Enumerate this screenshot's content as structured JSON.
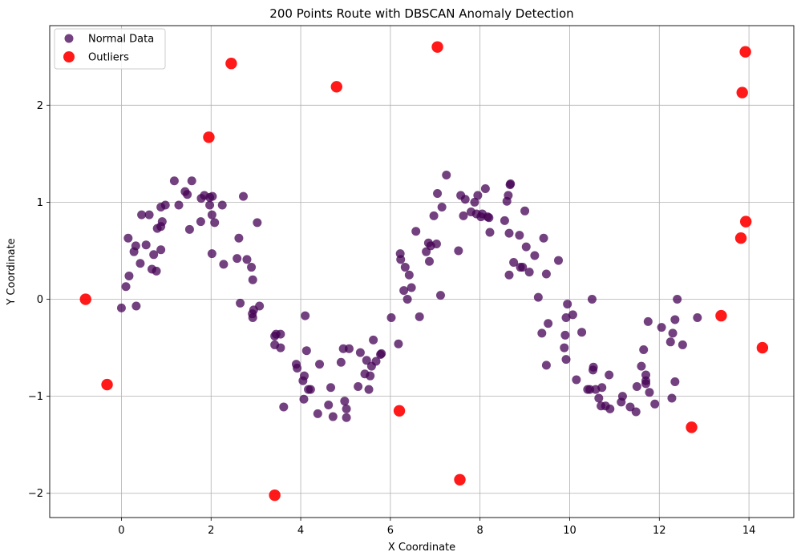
{
  "chart_data": {
    "type": "scatter",
    "title": "200 Points Route with DBSCAN Anomaly Detection",
    "xlabel": "X Coordinate",
    "ylabel": "Y Coordinate",
    "xlim": [
      -1.6,
      15.0
    ],
    "ylim": [
      -2.25,
      2.82
    ],
    "xticks": [
      0,
      2,
      4,
      6,
      8,
      10,
      12,
      14
    ],
    "yticks": [
      -2,
      -1,
      0,
      1,
      2
    ],
    "ytick_labels": [
      "−2",
      "−1",
      "0",
      "1",
      "2"
    ],
    "grid": true,
    "legend_position": "top-left",
    "series": [
      {
        "name": "Normal Data",
        "color": "#440154",
        "alpha": 0.75,
        "marker": "circle",
        "points": [
          [
            0.0,
            -0.09
          ],
          [
            0.1,
            0.13
          ],
          [
            0.17,
            0.24
          ],
          [
            0.15,
            0.63
          ],
          [
            0.28,
            0.49
          ],
          [
            0.32,
            0.55
          ],
          [
            0.33,
            -0.07
          ],
          [
            0.42,
            0.37
          ],
          [
            0.45,
            0.87
          ],
          [
            0.55,
            0.56
          ],
          [
            0.62,
            0.87
          ],
          [
            0.68,
            0.31
          ],
          [
            0.72,
            0.46
          ],
          [
            0.78,
            0.29
          ],
          [
            0.8,
            0.73
          ],
          [
            0.88,
            0.75
          ],
          [
            0.88,
            0.95
          ],
          [
            0.88,
            0.51
          ],
          [
            0.91,
            0.8
          ],
          [
            0.98,
            0.97
          ],
          [
            1.18,
            1.22
          ],
          [
            1.28,
            0.97
          ],
          [
            1.42,
            1.11
          ],
          [
            1.47,
            1.08
          ],
          [
            1.52,
            0.72
          ],
          [
            1.57,
            1.22
          ],
          [
            1.77,
            0.8
          ],
          [
            1.78,
            1.04
          ],
          [
            1.85,
            1.07
          ],
          [
            1.97,
            0.97
          ],
          [
            1.97,
            1.05
          ],
          [
            2.02,
            0.87
          ],
          [
            2.02,
            0.47
          ],
          [
            2.08,
            0.79
          ],
          [
            2.03,
            1.06
          ],
          [
            2.25,
            0.97
          ],
          [
            2.28,
            0.36
          ],
          [
            2.58,
            0.42
          ],
          [
            2.62,
            0.63
          ],
          [
            2.65,
            -0.04
          ],
          [
            2.72,
            1.06
          ],
          [
            2.8,
            0.41
          ],
          [
            2.9,
            0.33
          ],
          [
            2.92,
            -0.15
          ],
          [
            2.93,
            -0.19
          ],
          [
            2.93,
            0.2
          ],
          [
            2.95,
            -0.11
          ],
          [
            3.08,
            -0.07
          ],
          [
            3.03,
            0.79
          ],
          [
            3.42,
            -0.38
          ],
          [
            3.45,
            -0.36
          ],
          [
            3.55,
            -0.36
          ],
          [
            3.55,
            -0.5
          ],
          [
            3.62,
            -1.11
          ],
          [
            3.42,
            -0.47
          ],
          [
            3.9,
            -0.67
          ],
          [
            3.92,
            -0.71
          ],
          [
            4.05,
            -0.84
          ],
          [
            4.07,
            -1.03
          ],
          [
            4.08,
            -0.79
          ],
          [
            4.1,
            -0.17
          ],
          [
            4.13,
            -0.53
          ],
          [
            4.17,
            -0.93
          ],
          [
            4.22,
            -0.93
          ],
          [
            4.38,
            -1.18
          ],
          [
            4.42,
            -0.67
          ],
          [
            4.62,
            -1.09
          ],
          [
            4.67,
            -0.91
          ],
          [
            4.72,
            -1.21
          ],
          [
            4.9,
            -0.65
          ],
          [
            4.95,
            -0.51
          ],
          [
            4.98,
            -1.05
          ],
          [
            5.02,
            -1.13
          ],
          [
            5.02,
            -1.22
          ],
          [
            5.08,
            -0.51
          ],
          [
            5.28,
            -0.9
          ],
          [
            5.33,
            -0.55
          ],
          [
            5.43,
            -0.77
          ],
          [
            5.47,
            -0.63
          ],
          [
            5.52,
            -0.93
          ],
          [
            5.55,
            -0.79
          ],
          [
            5.58,
            -0.69
          ],
          [
            5.62,
            -0.42
          ],
          [
            5.68,
            -0.64
          ],
          [
            5.78,
            -0.57
          ],
          [
            5.8,
            -0.56
          ],
          [
            6.02,
            -0.19
          ],
          [
            6.18,
            -0.46
          ],
          [
            6.22,
            0.47
          ],
          [
            6.23,
            0.41
          ],
          [
            6.3,
            0.09
          ],
          [
            6.33,
            0.33
          ],
          [
            6.38,
            0.0
          ],
          [
            6.42,
            0.25
          ],
          [
            6.47,
            0.12
          ],
          [
            6.57,
            0.7
          ],
          [
            6.65,
            -0.18
          ],
          [
            6.8,
            0.49
          ],
          [
            6.85,
            0.58
          ],
          [
            6.87,
            0.39
          ],
          [
            6.9,
            0.55
          ],
          [
            6.97,
            0.86
          ],
          [
            7.03,
            0.57
          ],
          [
            7.05,
            1.09
          ],
          [
            7.12,
            0.04
          ],
          [
            7.15,
            0.95
          ],
          [
            7.25,
            1.28
          ],
          [
            7.52,
            0.5
          ],
          [
            7.57,
            1.07
          ],
          [
            7.63,
            0.86
          ],
          [
            7.67,
            1.03
          ],
          [
            7.8,
            0.9
          ],
          [
            7.88,
            1.0
          ],
          [
            7.92,
            0.88
          ],
          [
            7.95,
            1.07
          ],
          [
            8.02,
            0.85
          ],
          [
            8.05,
            0.88
          ],
          [
            8.12,
            1.14
          ],
          [
            8.17,
            0.85
          ],
          [
            8.2,
            0.84
          ],
          [
            8.22,
            0.69
          ],
          [
            8.55,
            0.81
          ],
          [
            8.6,
            1.01
          ],
          [
            8.63,
            1.07
          ],
          [
            8.65,
            0.68
          ],
          [
            8.67,
            1.18
          ],
          [
            8.68,
            1.19
          ],
          [
            8.65,
            0.25
          ],
          [
            8.75,
            0.38
          ],
          [
            8.88,
            0.66
          ],
          [
            8.9,
            0.33
          ],
          [
            8.95,
            0.33
          ],
          [
            9.0,
            0.91
          ],
          [
            9.03,
            0.54
          ],
          [
            9.1,
            0.28
          ],
          [
            9.22,
            0.45
          ],
          [
            9.3,
            0.02
          ],
          [
            9.38,
            -0.35
          ],
          [
            9.42,
            0.63
          ],
          [
            9.48,
            0.26
          ],
          [
            9.48,
            -0.68
          ],
          [
            9.52,
            -0.25
          ],
          [
            9.75,
            0.4
          ],
          [
            9.88,
            -0.5
          ],
          [
            9.9,
            -0.37
          ],
          [
            9.92,
            -0.19
          ],
          [
            9.92,
            -0.62
          ],
          [
            9.95,
            -0.05
          ],
          [
            10.07,
            -0.16
          ],
          [
            10.15,
            -0.83
          ],
          [
            10.27,
            -0.34
          ],
          [
            10.4,
            -0.93
          ],
          [
            10.45,
            -0.93
          ],
          [
            10.5,
            0.0
          ],
          [
            10.52,
            -0.73
          ],
          [
            10.53,
            -0.7
          ],
          [
            10.58,
            -0.93
          ],
          [
            10.65,
            -1.02
          ],
          [
            10.7,
            -1.1
          ],
          [
            10.72,
            -0.91
          ],
          [
            10.8,
            -1.1
          ],
          [
            10.88,
            -0.78
          ],
          [
            10.9,
            -1.13
          ],
          [
            11.15,
            -1.06
          ],
          [
            11.18,
            -1.0
          ],
          [
            11.35,
            -1.11
          ],
          [
            11.48,
            -1.16
          ],
          [
            11.5,
            -0.9
          ],
          [
            11.6,
            -0.69
          ],
          [
            11.65,
            -0.52
          ],
          [
            11.7,
            -0.87
          ],
          [
            11.7,
            -0.84
          ],
          [
            11.7,
            -0.78
          ],
          [
            11.75,
            -0.23
          ],
          [
            11.78,
            -0.96
          ],
          [
            11.9,
            -1.08
          ],
          [
            12.05,
            -0.29
          ],
          [
            12.25,
            -0.44
          ],
          [
            12.28,
            -1.02
          ],
          [
            12.3,
            -0.35
          ],
          [
            12.35,
            -0.85
          ],
          [
            12.35,
            -0.21
          ],
          [
            12.4,
            0.0
          ],
          [
            12.52,
            -0.47
          ],
          [
            12.85,
            -0.19
          ]
        ]
      },
      {
        "name": "Outliers",
        "color": "#ff0000",
        "alpha": 0.9,
        "marker": "circle",
        "points": [
          [
            -0.8,
            0.0
          ],
          [
            -0.32,
            -0.88
          ],
          [
            1.95,
            1.67
          ],
          [
            2.45,
            2.43
          ],
          [
            3.42,
            -2.02
          ],
          [
            4.8,
            2.19
          ],
          [
            6.2,
            -1.15
          ],
          [
            7.05,
            2.6
          ],
          [
            7.55,
            -1.86
          ],
          [
            12.72,
            -1.32
          ],
          [
            13.38,
            -0.17
          ],
          [
            13.82,
            0.63
          ],
          [
            13.85,
            2.13
          ],
          [
            13.92,
            2.55
          ],
          [
            13.93,
            0.8
          ],
          [
            14.3,
            -0.5
          ]
        ]
      }
    ]
  }
}
